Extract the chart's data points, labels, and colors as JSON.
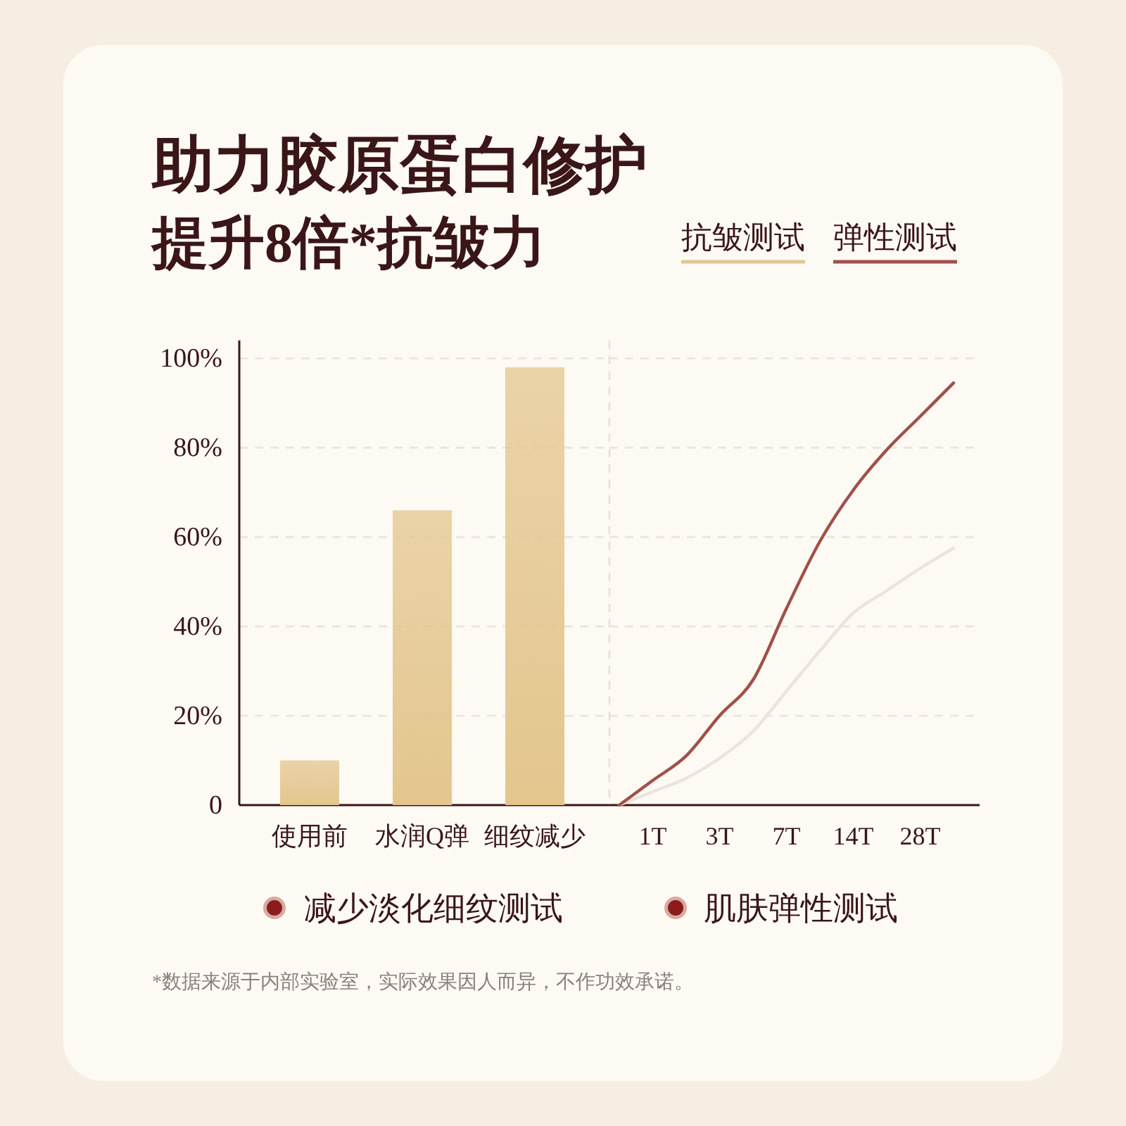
{
  "chart_data": [
    {
      "type": "bar",
      "title": "助力胶原蛋白修护",
      "subtitle": "提升8倍*抗皱力",
      "categories": [
        "使用前",
        "水润Q弹",
        "细纹减少"
      ],
      "series": [
        {
          "name": "抗皱测试",
          "color": "#e3c68e",
          "values": [
            10,
            66,
            98
          ]
        }
      ],
      "ylim": [
        0,
        104
      ],
      "yticks": [
        {
          "value": 0,
          "label": "0"
        },
        {
          "value": 20,
          "label": "20%"
        },
        {
          "value": 40,
          "label": "40%"
        },
        {
          "value": 60,
          "label": "60%"
        },
        {
          "value": 80,
          "label": "80%"
        },
        {
          "value": 100,
          "label": "100%"
        }
      ],
      "grid": "y",
      "legend": "top right"
    },
    {
      "type": "line",
      "categories": [
        null,
        "1T",
        null,
        "3T",
        null,
        "7T",
        null,
        "14T",
        null,
        "28T",
        null
      ],
      "ylim": [
        0,
        104
      ],
      "yticks": [
        {
          "value": 0,
          "label": null
        },
        {
          "value": 20,
          "label": null
        },
        {
          "value": 40,
          "label": null
        },
        {
          "value": 60,
          "label": null
        },
        {
          "value": 80,
          "label": null
        },
        {
          "value": 100,
          "label": null
        }
      ],
      "series": [
        {
          "color": "#ebe4dc",
          "values": [
            0,
            3,
            6,
            10.5,
            16.5,
            25.5,
            34.5,
            43,
            48,
            53,
            57.5
          ]
        },
        {
          "name": "弹性测试",
          "color": "#a0504a",
          "values": [
            0,
            5.5,
            11,
            20,
            28,
            44,
            59,
            70.5,
            79.5,
            87,
            94.5
          ]
        }
      ],
      "grid": "y",
      "legend": "top right",
      "tick_labels": "x",
      "annotations": [
        "减少淡化细纹测试",
        "肌肤弹性测试",
        "*数据来源于内部实验室，实际效果因人而异，不作功效承诺。"
      ]
    }
  ]
}
